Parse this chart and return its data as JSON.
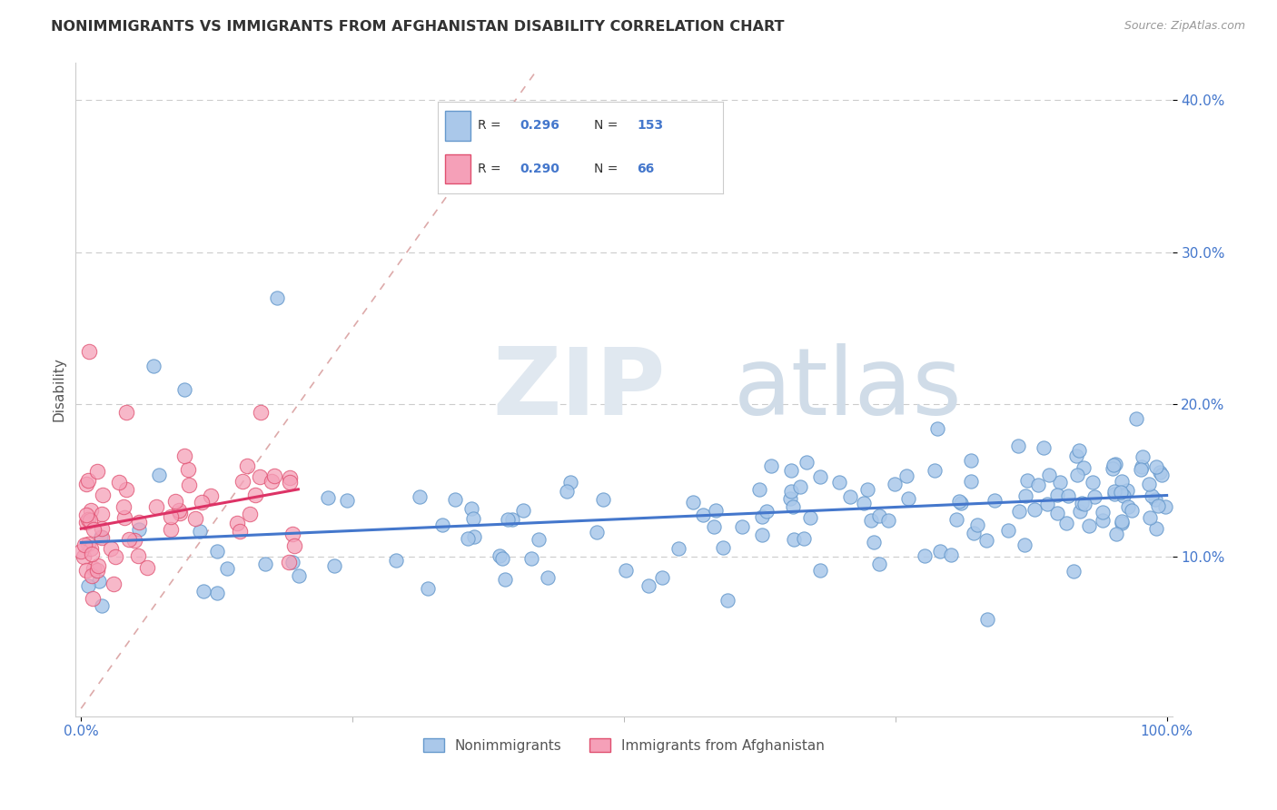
{
  "title": "NONIMMIGRANTS VS IMMIGRANTS FROM AFGHANISTAN DISABILITY CORRELATION CHART",
  "source": "Source: ZipAtlas.com",
  "ylabel": "Disability",
  "legend_R1": "0.296",
  "legend_N1": "153",
  "legend_R2": "0.290",
  "legend_N2": "66",
  "color_nonimm": "#aac8ea",
  "color_immig": "#f5a0b8",
  "edge_nonimm": "#6699cc",
  "edge_immig": "#e05070",
  "line_color_nonimm": "#4477cc",
  "line_color_immig": "#dd3366",
  "diag_color": "#ddaaaa",
  "background_color": "#ffffff",
  "grid_color": "#cccccc",
  "tick_color": "#4477cc",
  "ylabel_color": "#555555",
  "title_color": "#333333",
  "source_color": "#999999"
}
